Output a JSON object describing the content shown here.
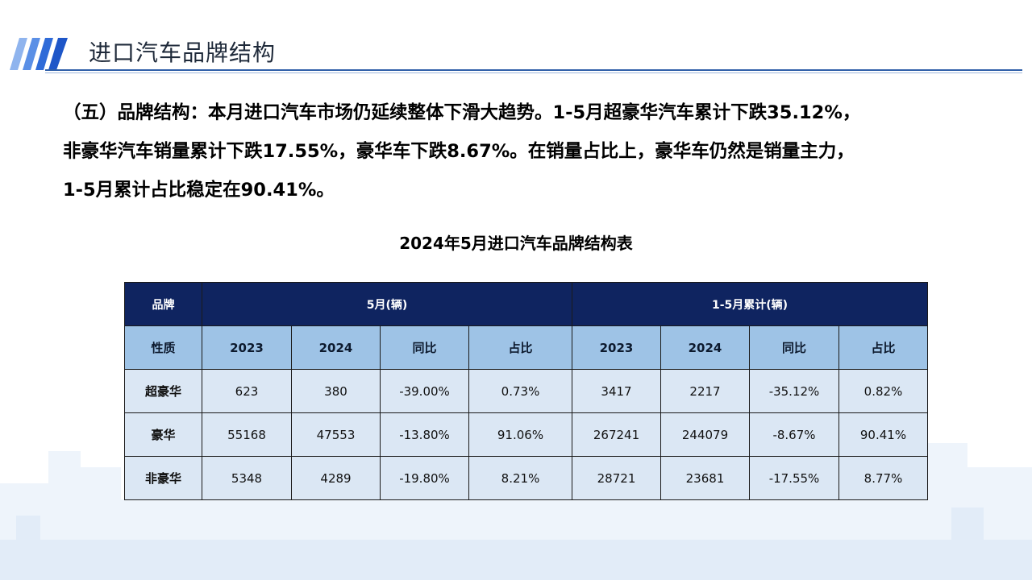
{
  "header": {
    "title": "进口汽车品牌结构"
  },
  "summary": {
    "lines": [
      "（五）品牌结构：本月进口汽车市场仍延续整体下滑大趋势。1-5月超豪华汽车累计下跌35.12%，",
      "非豪华汽车销量累计下跌17.55%，豪华车下跌8.67%。在销量占比上，豪华车仍然是销量主力，",
      "1-5月累计占比稳定在90.41%。"
    ]
  },
  "table": {
    "caption": "2024年5月进口汽车品牌结构表",
    "head": {
      "brand": "品牌",
      "group_may": "5月(辆)",
      "group_ytd": "1-5月累计(辆)"
    },
    "sub": {
      "nature": "性质",
      "cols": [
        "2023",
        "2024",
        "同比",
        "占比",
        "2023",
        "2024",
        "同比",
        "占比"
      ]
    },
    "rows": [
      {
        "brand": "超豪华",
        "cells": [
          "623",
          "380",
          "-39.00%",
          "0.73%",
          "3417",
          "2217",
          "-35.12%",
          "0.82%"
        ]
      },
      {
        "brand": "豪华",
        "cells": [
          "55168",
          "47553",
          "-13.80%",
          "91.06%",
          "267241",
          "244079",
          "-8.67%",
          "90.41%"
        ]
      },
      {
        "brand": "非豪华",
        "cells": [
          "5348",
          "4289",
          "-19.80%",
          "8.21%",
          "28721",
          "23681",
          "-17.55%",
          "8.77%"
        ]
      }
    ]
  },
  "colors": {
    "header_row": "#0f2460",
    "sub_header_row": "#9ec3e6",
    "data_row": "#dbe7f4",
    "title_rule": "#2f5fa8",
    "stripe_accent": "#2f6bd8"
  }
}
